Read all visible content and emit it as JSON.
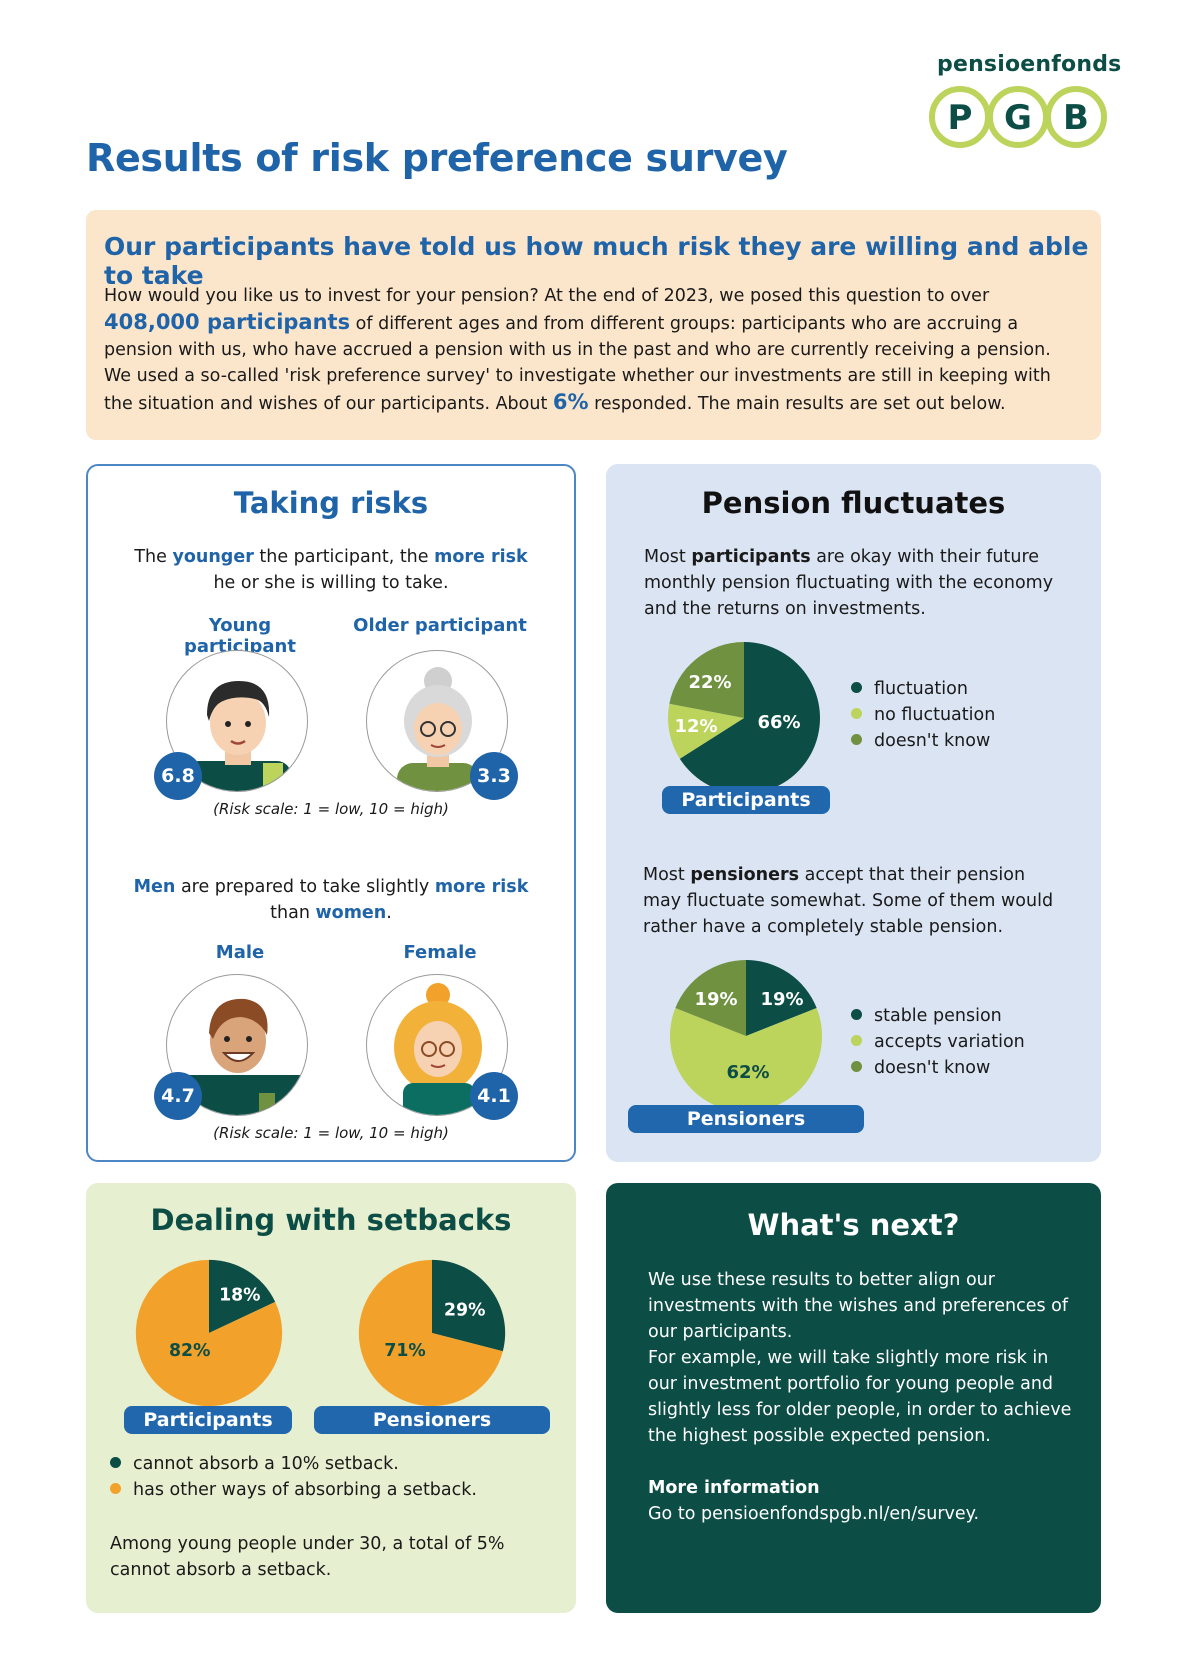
{
  "logo": {
    "word": "pensioenfonds",
    "letters": [
      "P",
      "G",
      "B"
    ]
  },
  "title": "Results of risk preference survey",
  "intro": {
    "heading": "Our participants have told us how much risk they are willing and able to take",
    "p1": "How would you like us to invest for your pension? At the end of 2023, we posed this question to over ",
    "count": "408,000 participants",
    "p2": " of different ages and from different groups: participants who are accruing a pension with us, who have accrued a pension with us in the past and who are currently receiving a pension. We used a so-called 'risk preference survey' to investigate whether our investments are still in keeping with the situation and wishes of our participants. About ",
    "pct": "6%",
    "p3": " responded. The main results are set out below."
  },
  "risk": {
    "heading": "Taking risks",
    "age_text": {
      "a": "The ",
      "b": "younger",
      "c": " the participant, the ",
      "d": "more risk",
      "e": "he or she is willing to take."
    },
    "young_label": "Young participant",
    "older_label": "Older participant",
    "young_score": "6.8",
    "older_score": "3.3",
    "scale_note": "(Risk scale: 1 = low, 10 = high)",
    "gender_text": {
      "a": "Men",
      "b": " are prepared to take slightly ",
      "c": "more risk",
      "d": "than ",
      "e": "women",
      "f": "."
    },
    "male_label": "Male",
    "female_label": "Female",
    "male_score": "4.7",
    "female_score": "4.1",
    "scale_note2": "(Risk scale: 1 = low, 10 = high)"
  },
  "fluct": {
    "heading": "Pension fluctuates",
    "text1": {
      "a": "Most ",
      "b": "participants",
      "c": " are okay with their future monthly pension fluctuating with the economy and the returns on investments."
    },
    "pill1": "Participants",
    "legend1": [
      "fluctuation",
      "no fluctuation",
      "doesn't know"
    ],
    "text2": {
      "a": "Most ",
      "b": "pensioners",
      "c": " accept that their pension may fluctuate somewhat. Some of them would rather have a completely stable pension."
    },
    "pill2": "Pensioners",
    "legend2": [
      "stable pension",
      "accepts variation",
      "doesn't know"
    ]
  },
  "setback": {
    "heading": "Dealing with setbacks",
    "pill1": "Participants",
    "pill2": "Pensioners",
    "legend": [
      "cannot absorb a 10% setback.",
      "has other ways of absorbing a setback."
    ],
    "note": "Among young people under 30, a total of 5% cannot absorb a setback."
  },
  "next": {
    "heading": "What's next?",
    "p1": "We use these results to better align our investments with the wishes and preferences of our participants.",
    "p2": "For example, we will take slightly more risk in our investment portfolio for young people and slightly less for older people, in order to achieve the highest possible expected pension.",
    "more_title": "More information",
    "more_text": "Go to pensioenfondspgb.nl/en/survey."
  },
  "colors": {
    "blue": "#1f63a8",
    "dark_green": "#0c4d45",
    "lime": "#bcd35c",
    "olive": "#6f9140",
    "orange": "#f2a22b"
  },
  "chart_data": [
    {
      "type": "pie",
      "title": "Participants",
      "labels": [
        "fluctuation",
        "no fluctuation",
        "doesn't know"
      ],
      "values": [
        66,
        12,
        22
      ],
      "colors": [
        "#0c4d45",
        "#bcd35c",
        "#6f9140"
      ]
    },
    {
      "type": "pie",
      "title": "Pensioners",
      "labels": [
        "stable pension",
        "accepts variation",
        "doesn't know"
      ],
      "values": [
        19,
        62,
        19
      ],
      "colors": [
        "#0c4d45",
        "#bcd35c",
        "#6f9140"
      ]
    },
    {
      "type": "pie",
      "title": "Participants",
      "labels": [
        "cannot absorb a 10% setback.",
        "has other ways of absorbing a setback."
      ],
      "values": [
        18,
        82
      ],
      "colors": [
        "#0c4d45",
        "#f2a22b"
      ]
    },
    {
      "type": "pie",
      "title": "Pensioners",
      "labels": [
        "cannot absorb a 10% setback.",
        "has other ways of absorbing a setback."
      ],
      "values": [
        29,
        71
      ],
      "colors": [
        "#0c4d45",
        "#f2a22b"
      ]
    }
  ]
}
